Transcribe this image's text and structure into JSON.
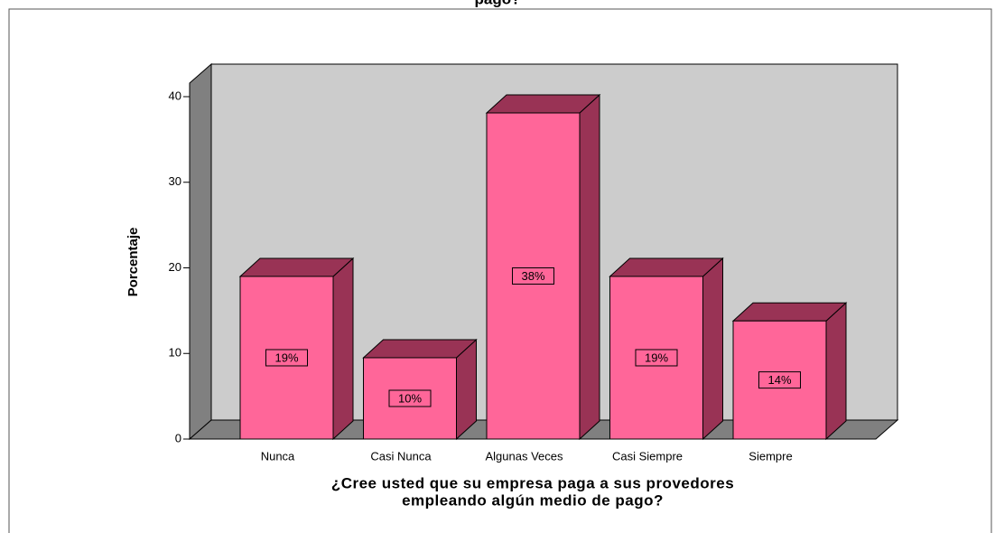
{
  "chart_data": {
    "type": "bar3d",
    "title": "pago?",
    "xlabel": [
      "¿Cree usted que su empresa paga a sus provedores",
      "empleando algún medio de pago?"
    ],
    "ylabel": "Porcentaje",
    "categories": [
      "Nunca",
      "Casi Nunca",
      "Algunas Veces",
      "Casi Siempre",
      "Siempre"
    ],
    "values": [
      19,
      9.5,
      38.1,
      19,
      13.8
    ],
    "value_labels": [
      "19%",
      "10%",
      "38%",
      "19%",
      "14%"
    ],
    "color": "#ff6699",
    "side_color": "#993355",
    "ylim": [
      0,
      40
    ],
    "yticks": [
      0,
      10,
      20,
      30,
      40
    ]
  }
}
